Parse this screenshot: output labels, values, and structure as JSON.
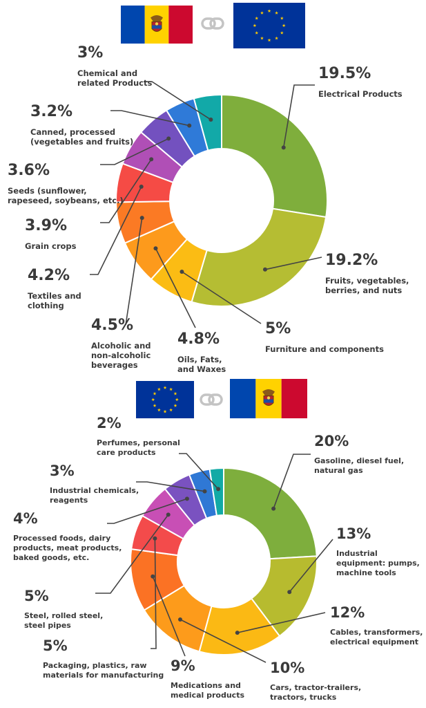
{
  "colors": {
    "moldova_blue": "#0046ae",
    "moldova_yellow": "#ffd200",
    "moldova_red": "#cc092f",
    "eu_blue": "#003399",
    "eu_star": "#ffcc00",
    "link_grey": "#c4c4c4",
    "text": "#3a3a3a",
    "leader_line": "#444444"
  },
  "icons": [
    "moldova-flag-icon",
    "chain-link-icon",
    "eu-flag-icon"
  ],
  "chart_data": [
    {
      "type": "pie",
      "donut": true,
      "flow": [
        "Moldova",
        "EU"
      ],
      "slices": [
        {
          "value": 19.5,
          "pct_label": "19.5%",
          "lines": [
            "Electrical Products"
          ],
          "color": "#7fae3c"
        },
        {
          "value": 19.2,
          "pct_label": "19.2%",
          "lines": [
            "Fruits, vegetables,",
            "berries, and nuts"
          ],
          "color": "#b5bd33"
        },
        {
          "value": 5,
          "pct_label": "5%",
          "lines": [
            "Furniture and components"
          ],
          "color": "#fbbc14"
        },
        {
          "value": 4.8,
          "pct_label": "4.8%",
          "lines": [
            "Oils, Fats,",
            "and Waxes"
          ],
          "color": "#fd9a1c"
        },
        {
          "value": 4.5,
          "pct_label": "4.5%",
          "lines": [
            "Alcoholic and",
            "non-alcoholic",
            "beverages"
          ],
          "color": "#fb7a24"
        },
        {
          "value": 4.2,
          "pct_label": "4.2%",
          "lines": [
            "Textiles and",
            "clothing"
          ],
          "color": "#f54b45"
        },
        {
          "value": 3.9,
          "pct_label": "3.9%",
          "lines": [
            "Grain crops"
          ],
          "color": "#b04fb6"
        },
        {
          "value": 3.6,
          "pct_label": "3.6%",
          "lines": [
            "Seeds (sunflower,",
            "rapeseed, soybeans, etc.)"
          ],
          "color": "#7351bf"
        },
        {
          "value": 3.2,
          "pct_label": "3.2%",
          "lines": [
            "Canned, processed",
            "(vegetables and fruits)"
          ],
          "color": "#2f7ad8"
        },
        {
          "value": 3,
          "pct_label": "3%",
          "lines": [
            "Chemical and",
            "related Products"
          ],
          "color": "#12a9a8"
        }
      ]
    },
    {
      "type": "pie",
      "donut": true,
      "flow": [
        "EU",
        "Moldova"
      ],
      "slices": [
        {
          "value": 20,
          "pct_label": "20%",
          "lines": [
            "Gasoline, diesel fuel,",
            "natural gas"
          ],
          "color": "#7eae3d"
        },
        {
          "value": 13,
          "pct_label": "13%",
          "lines": [
            "Industrial",
            "equipment: pumps,",
            "machine tools"
          ],
          "color": "#b7bb2f"
        },
        {
          "value": 12,
          "pct_label": "12%",
          "lines": [
            "Cables, transformers,",
            "electrical equipment"
          ],
          "color": "#fbb914"
        },
        {
          "value": 10,
          "pct_label": "10%",
          "lines": [
            "Cars, tractor-trailers,",
            "tractors, trucks"
          ],
          "color": "#fd9b1b"
        },
        {
          "value": 9,
          "pct_label": "9%",
          "lines": [
            "Medications and",
            "medical products"
          ],
          "color": "#fb7224"
        },
        {
          "value": 5,
          "pct_label": "5%",
          "lines": [
            "Packaging, plastics, raw",
            "materials for manufacturing"
          ],
          "color": "#f34b4b"
        },
        {
          "value": 5,
          "pct_label": "5%",
          "lines": [
            "Steel, rolled steel,",
            "steel pipes"
          ],
          "color": "#c84fb5"
        },
        {
          "value": 4,
          "pct_label": "4%",
          "lines": [
            "Processed foods, dairy",
            "products, meat products,",
            "baked goods, etc."
          ],
          "color": "#7a52c0"
        },
        {
          "value": 3,
          "pct_label": "3%",
          "lines": [
            "Industrial chemicals,",
            "reagents"
          ],
          "color": "#2f78d5"
        },
        {
          "value": 2,
          "pct_label": "2%",
          "lines": [
            "Perfumes, personal",
            "care products"
          ],
          "color": "#12aaa6"
        }
      ]
    }
  ]
}
